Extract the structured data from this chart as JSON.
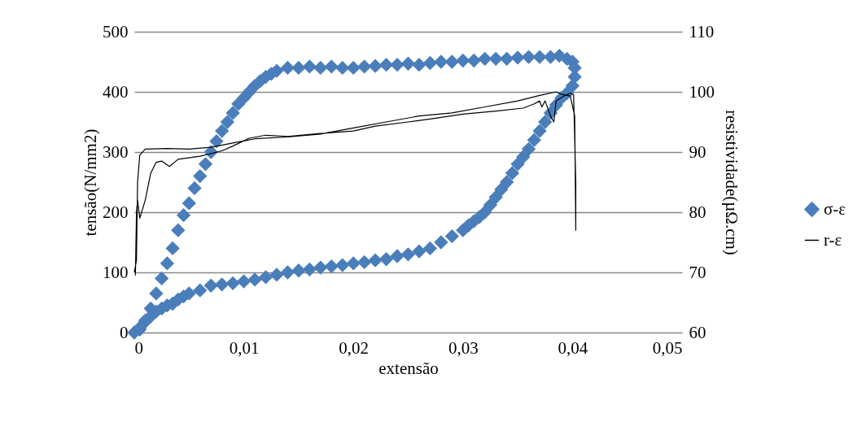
{
  "chart_data": {
    "type": "scatter",
    "xlabel": "extensão",
    "ylabel": "tensão(N/mm2)",
    "y2label": "resistividade(µΩ.cm)",
    "xlim": [
      0,
      0.05
    ],
    "xticks": [
      0,
      {
        "value": 0.01,
        "label": "0,01"
      },
      {
        "value": 0.02,
        "label": "0,02"
      },
      {
        "value": 0.03,
        "label": "0,03"
      },
      {
        "value": 0.04,
        "label": "0,04"
      },
      {
        "value": 0.05,
        "label": "0,05"
      }
    ],
    "ylim": [
      0,
      500
    ],
    "yticks": [
      0,
      100,
      200,
      300,
      400,
      500
    ],
    "y2lim": [
      60,
      110
    ],
    "y2ticks": [
      60,
      70,
      80,
      90,
      100,
      110
    ],
    "grid": "y",
    "legend": "right",
    "series": [
      {
        "name": "σ-ε",
        "marker": "diamond",
        "color": "#4a7ebb",
        "x": [
          0,
          0.0005,
          0.001,
          0.0015,
          0.002,
          0.0025,
          0.003,
          0.0035,
          0.004,
          0.0045,
          0.005,
          0.0055,
          0.006,
          0.0065,
          0.007,
          0.0075,
          0.008,
          0.0085,
          0.009,
          0.0095,
          0.01,
          0.0105,
          0.011,
          0.0115,
          0.012,
          0.0125,
          0.013,
          0.014,
          0.015,
          0.016,
          0.017,
          0.018,
          0.019,
          0.02,
          0.021,
          0.022,
          0.023,
          0.024,
          0.025,
          0.026,
          0.027,
          0.028,
          0.029,
          0.03,
          0.031,
          0.032,
          0.033,
          0.034,
          0.035,
          0.036,
          0.037,
          0.038,
          0.0388,
          0.0395,
          0.04,
          0.0402,
          0.0402,
          0.04,
          0.0395,
          0.039,
          0.0385,
          0.038,
          0.0375,
          0.037,
          0.0365,
          0.036,
          0.0355,
          0.035,
          0.0345,
          0.034,
          0.0335,
          0.033,
          0.0325,
          0.032,
          0.0315,
          0.031,
          0.0305,
          0.03,
          0.029,
          0.028,
          0.027,
          0.026,
          0.025,
          0.024,
          0.023,
          0.022,
          0.021,
          0.02,
          0.019,
          0.018,
          0.017,
          0.016,
          0.015,
          0.014,
          0.013,
          0.012,
          0.011,
          0.01,
          0.009,
          0.008,
          0.007,
          0.006,
          0.005,
          0.0045,
          0.004,
          0.0035,
          0.003,
          0.0025,
          0.002,
          0.0015,
          0.001,
          0.0005
        ],
        "values": [
          0,
          5,
          20,
          40,
          65,
          90,
          115,
          140,
          170,
          195,
          215,
          240,
          260,
          280,
          300,
          318,
          335,
          350,
          365,
          380,
          390,
          400,
          410,
          418,
          425,
          430,
          435,
          440,
          440,
          442,
          440,
          442,
          440,
          440,
          442,
          443,
          445,
          445,
          447,
          445,
          448,
          450,
          450,
          452,
          452,
          455,
          455,
          455,
          457,
          458,
          458,
          458,
          460,
          455,
          450,
          440,
          425,
          410,
          398,
          390,
          378,
          365,
          350,
          335,
          320,
          305,
          292,
          280,
          265,
          250,
          238,
          225,
          212,
          200,
          192,
          185,
          178,
          170,
          160,
          150,
          140,
          135,
          130,
          127,
          122,
          120,
          117,
          115,
          112,
          110,
          108,
          105,
          103,
          100,
          96,
          92,
          88,
          85,
          82,
          80,
          78,
          70,
          65,
          60,
          55,
          48,
          45,
          40,
          35,
          27,
          18,
          8
        ]
      },
      {
        "name": "r-ε",
        "type": "line",
        "axis": "y2",
        "color": "#000000",
        "x": [
          0,
          0.0002,
          0.0003,
          0.0005,
          0.001,
          0.003,
          0.005,
          0.007,
          0.009,
          0.011,
          0.014,
          0.017,
          0.02,
          0.023,
          0.026,
          0.029,
          0.032,
          0.035,
          0.037,
          0.0385,
          0.039,
          0.0398,
          0.0402,
          0.0403,
          0.0403,
          0.0401,
          0.0398,
          0.0392,
          0.0385,
          0.0383,
          0.038,
          0.0375,
          0.0372,
          0.037,
          0.0365,
          0.0355,
          0.033,
          0.03,
          0.027,
          0.025,
          0.022,
          0.02,
          0.017,
          0.014,
          0.012,
          0.0105,
          0.009,
          0.008,
          0.006,
          0.004,
          0.0032,
          0.0025,
          0.002,
          0.0015,
          0.001,
          0.0005,
          0.0003,
          0.0002,
          0.0001
        ],
        "values": [
          70,
          72,
          85,
          89.5,
          90.5,
          90.6,
          90.5,
          90.8,
          91.5,
          92.2,
          92.5,
          93,
          94,
          95,
          96,
          96.5,
          97.5,
          98.5,
          99.4,
          100,
          99.6,
          99.3,
          96,
          77,
          85,
          99.5,
          99.8,
          99.3,
          98.5,
          95,
          96,
          98.5,
          97.5,
          98.5,
          98,
          97.3,
          96.8,
          96.3,
          95.5,
          95,
          94.3,
          93.5,
          93.1,
          92.6,
          92.8,
          92.3,
          91,
          90.2,
          89.3,
          88.8,
          87.6,
          88.5,
          88.3,
          86.5,
          82,
          79,
          82,
          80,
          69.5
        ]
      }
    ]
  }
}
